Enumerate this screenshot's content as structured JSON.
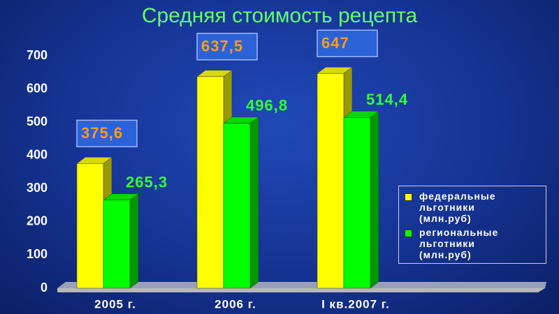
{
  "chart_data": {
    "type": "bar3d",
    "title": "Средняя стоимость рецепта",
    "categories": [
      "2005 г.",
      "2006 г.",
      "I кв.2007 г."
    ],
    "series": [
      {
        "name": "федеральные льготники (млн.руб)",
        "color": "#ffff00",
        "values": [
          375.6,
          637.5,
          647
        ],
        "value_labels": [
          "375,6",
          "637,5",
          "647"
        ]
      },
      {
        "name": "региональные льготники (млн.руб)",
        "color": "#00ff00",
        "values": [
          265.3,
          496.8,
          514.4
        ],
        "value_labels": [
          "265,3",
          "496,8",
          "514,4"
        ]
      }
    ],
    "ylim": [
      0,
      700
    ],
    "yticks": [
      0,
      100,
      200,
      300,
      400,
      500,
      600,
      700
    ]
  }
}
